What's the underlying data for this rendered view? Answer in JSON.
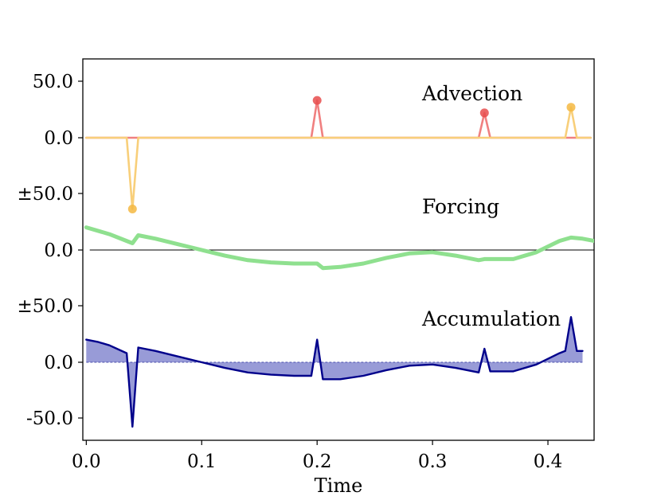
{
  "chart_data": {
    "type": "line",
    "xlabel": "Time",
    "xlim": [
      -0.003,
      0.44
    ],
    "x_ticks": [
      0.0,
      0.1,
      0.2,
      0.3,
      0.4
    ],
    "x_tick_labels": [
      "0.0",
      "0.1",
      "0.2",
      "0.3",
      "0.4"
    ],
    "y_tick_labels": [
      "50.0",
      "0.0",
      "±50.0",
      "0.0",
      "±50.0",
      "0.0",
      "-50.0"
    ],
    "panels": [
      {
        "name": "Advection",
        "label": "Advection",
        "baseline": 0,
        "series": [
          {
            "name": "advection-red",
            "color": "#f08080",
            "x": [
              0.0,
              0.195,
              0.2,
              0.205,
              0.34,
              0.345,
              0.35,
              0.437
            ],
            "y": [
              0,
              0,
              33,
              0,
              0,
              22,
              0,
              0
            ],
            "markers": [
              [
                0.2,
                33
              ],
              [
                0.345,
                22
              ]
            ],
            "marker_color": "#e84c4c"
          },
          {
            "name": "advection-orange",
            "color": "#f8cf7a",
            "x": [
              0.0,
              0.035,
              0.04,
              0.045,
              0.415,
              0.42,
              0.425,
              0.437
            ],
            "y": [
              0,
              0,
              -63,
              0,
              0,
              27,
              0,
              0
            ],
            "markers": [
              [
                0.04,
                -63
              ],
              [
                0.42,
                27
              ]
            ],
            "marker_color": "#f5b942"
          }
        ]
      },
      {
        "name": "Forcing",
        "label": "Forcing",
        "baseline": 0,
        "series": [
          {
            "name": "forcing",
            "color": "#8fe08f",
            "x": [
              0.0,
              0.02,
              0.04,
              0.045,
              0.06,
              0.08,
              0.1,
              0.12,
              0.14,
              0.16,
              0.18,
              0.195,
              0.2,
              0.205,
              0.22,
              0.24,
              0.26,
              0.28,
              0.3,
              0.32,
              0.34,
              0.345,
              0.35,
              0.37,
              0.39,
              0.41,
              0.42,
              0.43,
              0.44
            ],
            "y": [
              20,
              14,
              6,
              13,
              10,
              5,
              0,
              -5,
              -9,
              -11,
              -12,
              -12,
              -12,
              -16,
              -15,
              -12,
              -7,
              -3,
              -2,
              -5,
              -9,
              -8,
              -8,
              -8,
              -2,
              8,
              11,
              10,
              8
            ]
          }
        ]
      },
      {
        "name": "Accumulation",
        "label": "Accumulation",
        "baseline": 0,
        "series": [
          {
            "name": "accumulation",
            "color": "#00008b",
            "fill": "#7b7fcc",
            "x": [
              0.0,
              0.01,
              0.02,
              0.035,
              0.04,
              0.045,
              0.06,
              0.08,
              0.1,
              0.12,
              0.14,
              0.16,
              0.18,
              0.195,
              0.2,
              0.205,
              0.22,
              0.24,
              0.26,
              0.28,
              0.3,
              0.32,
              0.34,
              0.345,
              0.35,
              0.37,
              0.39,
              0.41,
              0.415,
              0.42,
              0.425,
              0.43
            ],
            "y": [
              20,
              18,
              15,
              8,
              -57,
              13,
              10,
              5,
              0,
              -5,
              -9,
              -11,
              -12,
              -12,
              20,
              -15,
              -15,
              -12,
              -7,
              -3,
              -2,
              -5,
              -9,
              12,
              -8,
              -8,
              -2,
              8,
              10,
              40,
              10,
              10
            ]
          }
        ]
      }
    ]
  }
}
